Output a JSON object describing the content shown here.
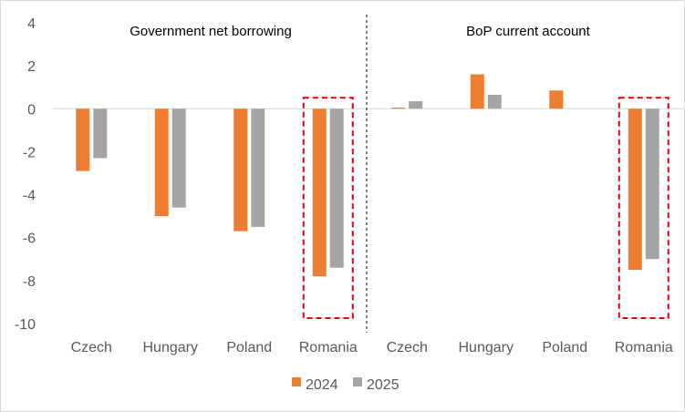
{
  "chart_data": {
    "type": "bar",
    "ylim": [
      -10,
      4
    ],
    "yticks": [
      4,
      2,
      0,
      -2,
      -4,
      -6,
      -8,
      -10
    ],
    "colors": {
      "2024": "#ED7D31",
      "2025": "#A5A5A5",
      "highlight": "#E00000"
    },
    "legend": [
      "2024",
      "2025"
    ],
    "panels": [
      {
        "title": "Government net borrowing",
        "categories": [
          "Czech",
          "Hungary",
          "Poland",
          "Romania"
        ],
        "series": [
          {
            "name": "2024",
            "values": [
              -2.9,
              -5.0,
              -5.7,
              -7.8
            ]
          },
          {
            "name": "2025",
            "values": [
              -2.3,
              -4.6,
              -5.5,
              -7.4
            ]
          }
        ],
        "highlighted": "Romania"
      },
      {
        "title": "BoP current account",
        "categories": [
          "Czech",
          "Hungary",
          "Poland",
          "Romania"
        ],
        "series": [
          {
            "name": "2024",
            "values": [
              0.05,
              1.6,
              0.85,
              -7.5
            ]
          },
          {
            "name": "2025",
            "values": [
              0.35,
              0.65,
              null,
              -7.0
            ]
          }
        ],
        "highlighted": "Romania"
      }
    ]
  }
}
